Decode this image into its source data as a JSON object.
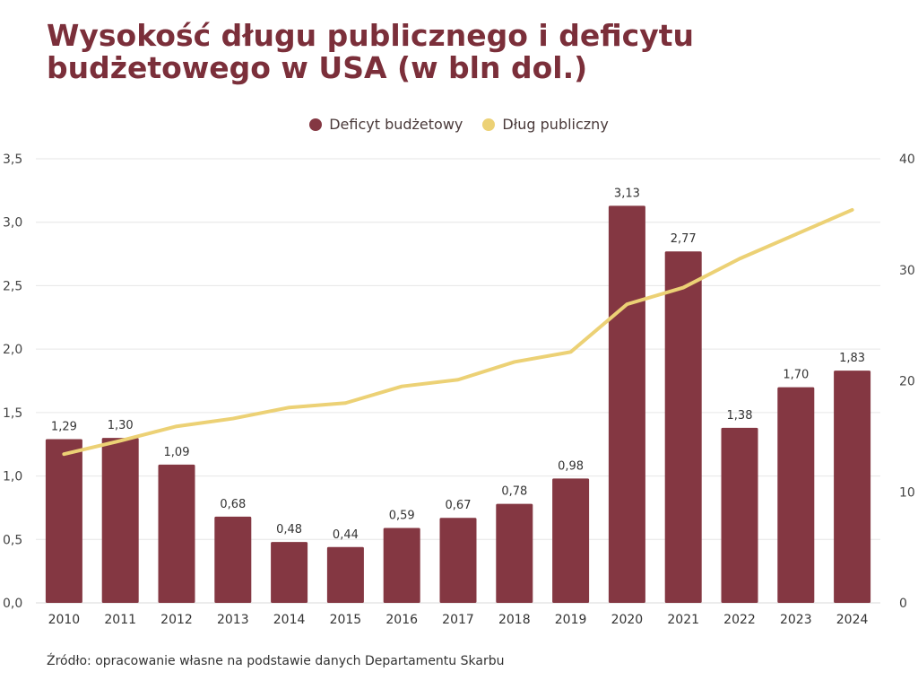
{
  "chart_data": {
    "type": "bar+line",
    "title": "Wysokość długu publicznego i deficytu budżetowego w USA (w bln dol.)",
    "categories": [
      "2010",
      "2011",
      "2012",
      "2013",
      "2014",
      "2015",
      "2016",
      "2017",
      "2018",
      "2019",
      "2020",
      "2021",
      "2022",
      "2023",
      "2024"
    ],
    "series": [
      {
        "name": "Deficyt budżetowy",
        "type": "bar",
        "axis": "left",
        "color": "#843742",
        "values": [
          1.29,
          1.3,
          1.09,
          0.68,
          0.48,
          0.44,
          0.59,
          0.67,
          0.78,
          0.98,
          3.13,
          2.77,
          1.38,
          1.7,
          1.83
        ],
        "labels": [
          "1,29",
          "1,30",
          "1,09",
          "0,68",
          "0,48",
          "0,44",
          "0,59",
          "0,67",
          "0,78",
          "0,98",
          "3,13",
          "2,77",
          "1,38",
          "1,70",
          "1,83"
        ]
      },
      {
        "name": "Dług publiczny",
        "type": "line",
        "axis": "right",
        "color": "#ecd175",
        "values": [
          13.4,
          14.6,
          15.9,
          16.6,
          17.6,
          18.0,
          19.5,
          20.1,
          21.7,
          22.6,
          26.9,
          28.4,
          31.0,
          33.2,
          35.4
        ]
      }
    ],
    "left_axis": {
      "ylim": [
        0,
        3.5
      ],
      "ticks": [
        "0,0",
        "0,5",
        "1,0",
        "1,5",
        "2,0",
        "2,5",
        "3,0",
        "3,5"
      ]
    },
    "right_axis": {
      "ylim": [
        0,
        40
      ],
      "ticks": [
        "0",
        "10",
        "20",
        "30",
        "40"
      ]
    },
    "grid": true,
    "legend_position": "top-center"
  },
  "source": "Źródło: opracowanie własne na podstawie danych Departamentu Skarbu"
}
